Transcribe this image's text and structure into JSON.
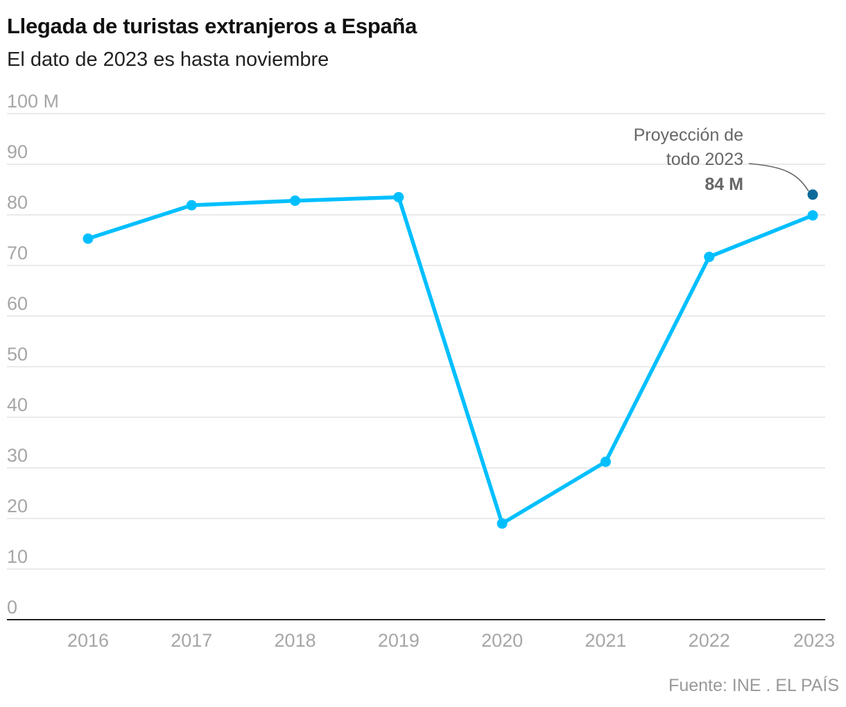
{
  "header": {
    "title": "Llegada de turistas extranjeros a España",
    "subtitle": "El dato de 2023 es hasta noviembre"
  },
  "source": "Fuente: INE . EL PAÍS",
  "colors": {
    "series": "#00bfff",
    "projection": "#0a6a9a",
    "grid": "#dddddd",
    "axis": "#222222",
    "tick_text": "#a6a6a6",
    "annotation_text": "#666666"
  },
  "chart_data": {
    "type": "line",
    "x": [
      "2016",
      "2017",
      "2018",
      "2019",
      "2020",
      "2021",
      "2022",
      "2023"
    ],
    "series": [
      {
        "values": [
          75.3,
          81.9,
          82.8,
          83.5,
          19.0,
          31.2,
          71.7,
          79.9
        ]
      }
    ],
    "projection": {
      "x": "2023",
      "value": 84
    },
    "annotation": {
      "lines": [
        "Proyección de",
        "todo 2023"
      ],
      "value_label": "84 M"
    },
    "y_ticks": [
      {
        "value": 0,
        "label": "0"
      },
      {
        "value": 10,
        "label": "10"
      },
      {
        "value": 20,
        "label": "20"
      },
      {
        "value": 30,
        "label": "30"
      },
      {
        "value": 40,
        "label": "40"
      },
      {
        "value": 50,
        "label": "50"
      },
      {
        "value": 60,
        "label": "60"
      },
      {
        "value": 70,
        "label": "70"
      },
      {
        "value": 80,
        "label": "80"
      },
      {
        "value": 90,
        "label": "90"
      },
      {
        "value": 100,
        "label": "100 M"
      }
    ],
    "ylim": [
      0,
      100
    ],
    "grid": true,
    "legend": "none"
  }
}
